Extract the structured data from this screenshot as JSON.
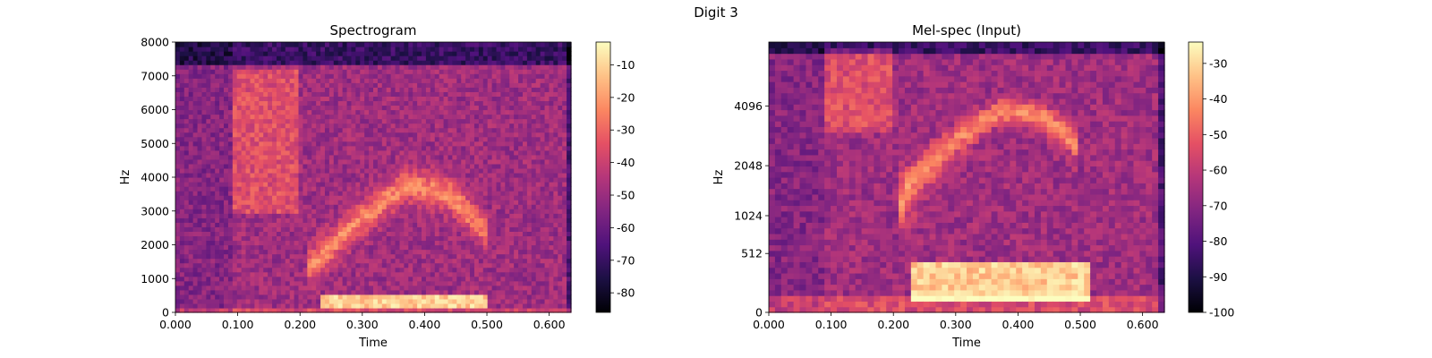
{
  "suptitle": "Digit 3",
  "chart_data": [
    {
      "type": "heatmap",
      "title": "Spectrogram",
      "xlabel": "Time",
      "ylabel": "Hz",
      "xlim": [
        0,
        0.635
      ],
      "ylim": [
        0,
        8000
      ],
      "x_ticks": [
        0,
        0.1,
        0.2,
        0.3,
        0.4,
        0.5,
        0.6
      ],
      "x_tick_labels": [
        "0.000",
        "0.100",
        "0.200",
        "0.300",
        "0.400",
        "0.500",
        "0.600"
      ],
      "y_ticks": [
        0,
        1000,
        2000,
        3000,
        4000,
        5000,
        6000,
        7000,
        8000
      ],
      "y_tick_labels": [
        "0",
        "1000",
        "2000",
        "3000",
        "4000",
        "5000",
        "6000",
        "7000",
        "8000"
      ],
      "colormap": "magma",
      "colorbar": {
        "min": -86,
        "max": -3,
        "ticks": [
          -10,
          -20,
          -30,
          -40,
          -50,
          -60,
          -70,
          -80
        ],
        "labels": [
          "-10",
          "-20",
          "-30",
          "-40",
          "-50",
          "-60",
          "-70",
          "-80"
        ]
      },
      "features": {
        "onset_time": 0.09,
        "harmonics_start": 0.23,
        "harmonics_end": 0.5,
        "low_band_hz": [
          100,
          500
        ],
        "formant_arc": [
          [
            0.21,
            1300
          ],
          [
            0.3,
            2800
          ],
          [
            0.37,
            3800
          ],
          [
            0.44,
            3500
          ],
          [
            0.5,
            2400
          ]
        ],
        "burst_time": [
          0.09,
          0.2
        ],
        "burst_hz": [
          3000,
          7200
        ]
      }
    },
    {
      "type": "heatmap",
      "title": "Mel-spec (Input)",
      "xlabel": "Time",
      "ylabel": "Hz",
      "xlim": [
        0,
        0.635
      ],
      "y_scale": "mel",
      "ylim": [
        0,
        8000
      ],
      "x_ticks": [
        0,
        0.1,
        0.2,
        0.3,
        0.4,
        0.5,
        0.6
      ],
      "x_tick_labels": [
        "0.000",
        "0.100",
        "0.200",
        "0.300",
        "0.400",
        "0.500",
        "0.600"
      ],
      "y_ticks": [
        0,
        512,
        1024,
        2048,
        4096
      ],
      "y_tick_labels": [
        "0",
        "512",
        "1024",
        "2048",
        "4096"
      ],
      "colormap": "magma",
      "colorbar": {
        "min": -100,
        "max": -24,
        "ticks": [
          -30,
          -40,
          -50,
          -60,
          -70,
          -80,
          -90,
          -100
        ],
        "labels": [
          "-30",
          "-40",
          "-50",
          "-60",
          "-70",
          "-80",
          "-90",
          "-100"
        ]
      },
      "features": {
        "onset_time": 0.09,
        "harmonics_start": 0.23,
        "harmonics_end": 0.52,
        "low_band_hz": [
          80,
          450
        ],
        "formant_arc": [
          [
            0.21,
            1300
          ],
          [
            0.3,
            2800
          ],
          [
            0.37,
            3900
          ],
          [
            0.44,
            3700
          ],
          [
            0.5,
            2600
          ]
        ],
        "burst_time": [
          0.09,
          0.2
        ],
        "burst_hz": [
          3000,
          7500
        ]
      }
    }
  ]
}
